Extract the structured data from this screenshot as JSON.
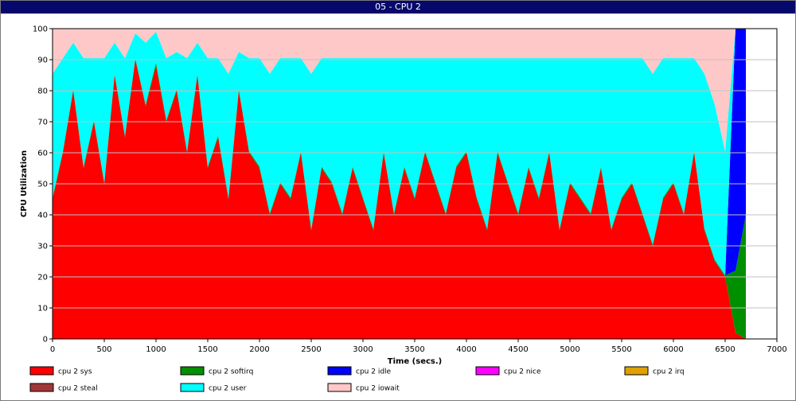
{
  "window": {
    "title": "05 - CPU 2"
  },
  "chart_data": {
    "type": "area",
    "title": "05 - CPU 2",
    "xlabel": "Time (secs.)",
    "ylabel": "CPU Utilization",
    "xlim": [
      0,
      7000
    ],
    "ylim": [
      0,
      100
    ],
    "xticks": [
      0,
      500,
      1000,
      1500,
      2000,
      2500,
      3000,
      3500,
      4000,
      4500,
      5000,
      5500,
      6000,
      6500,
      7000
    ],
    "yticks": [
      0,
      10,
      20,
      30,
      40,
      50,
      60,
      70,
      80,
      90,
      100
    ],
    "grid": "horizontal",
    "legend_position": "bottom",
    "stacking": "stacked",
    "x": [
      0,
      100,
      200,
      300,
      400,
      500,
      600,
      700,
      800,
      900,
      1000,
      1100,
      1200,
      1300,
      1400,
      1500,
      1600,
      1700,
      1800,
      1900,
      2000,
      2100,
      2200,
      2300,
      2400,
      2500,
      2600,
      2700,
      2800,
      2900,
      3000,
      3100,
      3200,
      3300,
      3400,
      3500,
      3600,
      3700,
      3800,
      3900,
      4000,
      4100,
      4200,
      4300,
      4400,
      4500,
      4600,
      4700,
      4800,
      4900,
      5000,
      5100,
      5200,
      5300,
      5400,
      5500,
      5600,
      5700,
      5800,
      5900,
      6000,
      6100,
      6200,
      6300,
      6400,
      6500,
      6600,
      6700
    ],
    "series": [
      {
        "name": "cpu 2 sys",
        "color": "#ff0000",
        "values": [
          45,
          60,
          80,
          55,
          70,
          50,
          85,
          65,
          90,
          75,
          88,
          70,
          80,
          60,
          85,
          55,
          65,
          45,
          80,
          60,
          55,
          40,
          50,
          45,
          60,
          35,
          55,
          50,
          40,
          55,
          45,
          35,
          60,
          40,
          55,
          45,
          60,
          50,
          40,
          55,
          60,
          45,
          35,
          60,
          50,
          40,
          55,
          45,
          60,
          35,
          50,
          45,
          40,
          55,
          35,
          45,
          50,
          40,
          30,
          45,
          50,
          40,
          60,
          35,
          25,
          20,
          2,
          0
        ]
      },
      {
        "name": "cpu 2 softirq",
        "color": "#008f00",
        "values": [
          0.5,
          0.5,
          0.5,
          0.5,
          0.5,
          0.5,
          0.5,
          0.5,
          0.5,
          0.5,
          1,
          0.5,
          0.5,
          0.5,
          0.5,
          0.5,
          0.5,
          0.5,
          0.5,
          0.5,
          0.5,
          0.5,
          0.5,
          0.5,
          0.5,
          0.5,
          0.5,
          0.5,
          0.5,
          0.5,
          0.5,
          0.5,
          0.5,
          0.5,
          0.5,
          0.5,
          0.5,
          0.5,
          0.5,
          0.5,
          0.5,
          0.5,
          0.5,
          0.5,
          0.5,
          0.5,
          0.5,
          0.5,
          0.5,
          0.5,
          0.5,
          0.5,
          0.5,
          0.5,
          0.5,
          0.5,
          0.5,
          0.5,
          0.5,
          0.5,
          0.5,
          0.5,
          0.5,
          0.5,
          0.5,
          0.5,
          20,
          40
        ]
      },
      {
        "name": "cpu 2 idle",
        "color": "#0000ff",
        "values": [
          0,
          0,
          0,
          0,
          0,
          0,
          0,
          0,
          0,
          0,
          0,
          0,
          0,
          0,
          0,
          0,
          0,
          0,
          0,
          0,
          0,
          0,
          0,
          0,
          0,
          0,
          0,
          0,
          0,
          0,
          0,
          0,
          0,
          0,
          0,
          0,
          0,
          0,
          0,
          0,
          0,
          0,
          0,
          0,
          0,
          0,
          0,
          0,
          0,
          0,
          0,
          0,
          0,
          0,
          0,
          0,
          0,
          0,
          0,
          0,
          0,
          0,
          0,
          0,
          0,
          0,
          78,
          60
        ]
      },
      {
        "name": "cpu 2 nice",
        "color": "#ff00ff",
        "values": [
          0,
          0,
          0,
          0,
          0,
          0,
          0,
          0,
          0,
          0,
          0,
          0,
          0,
          0,
          0,
          0,
          0,
          0,
          0,
          0,
          0,
          0,
          0,
          0,
          0,
          0,
          0,
          0,
          0,
          0,
          0,
          0,
          0,
          0,
          0,
          0,
          0,
          0,
          0,
          0,
          0,
          0,
          0,
          0,
          0,
          0,
          0,
          0,
          0,
          0,
          0,
          0,
          0,
          0,
          0,
          0,
          0,
          0,
          0,
          0,
          0,
          0,
          0,
          0,
          0,
          0,
          0,
          0
        ]
      },
      {
        "name": "cpu 2 irq",
        "color": "#e0a000",
        "values": [
          0,
          0,
          0,
          0,
          0,
          0,
          0,
          0,
          0,
          0,
          0,
          0,
          0,
          0,
          0,
          0,
          0,
          0,
          0,
          0,
          0,
          0,
          0,
          0,
          0,
          0,
          0,
          0,
          0,
          0,
          0,
          0,
          0,
          0,
          0,
          0,
          0,
          0,
          0,
          0,
          0,
          0,
          0,
          0,
          0,
          0,
          0,
          0,
          0,
          0,
          0,
          0,
          0,
          0,
          0,
          0,
          0,
          0,
          0,
          0,
          0,
          0,
          0,
          0,
          0,
          0,
          0,
          0
        ]
      },
      {
        "name": "cpu 2 steal",
        "color": "#a03838",
        "values": [
          0,
          0,
          0,
          0,
          0,
          0,
          0,
          0,
          0,
          0,
          0,
          0,
          0,
          0,
          0,
          0,
          0,
          0,
          0,
          0,
          0,
          0,
          0,
          0,
          0,
          0,
          0,
          0,
          0,
          0,
          0,
          0,
          0,
          0,
          0,
          0,
          0,
          0,
          0,
          0,
          0,
          0,
          0,
          0,
          0,
          0,
          0,
          0,
          0,
          0,
          0,
          0,
          0,
          0,
          0,
          0,
          0,
          0,
          0,
          0,
          0,
          0,
          0,
          0,
          0,
          0,
          0,
          0
        ]
      },
      {
        "name": "cpu 2 user",
        "color": "#00ffff",
        "values": [
          40,
          30,
          15,
          35,
          20,
          40,
          10,
          25,
          8,
          20,
          10,
          20,
          12,
          30,
          10,
          35,
          25,
          40,
          12,
          30,
          35,
          45,
          40,
          45,
          30,
          50,
          35,
          40,
          50,
          35,
          45,
          55,
          30,
          50,
          35,
          45,
          30,
          40,
          50,
          35,
          30,
          45,
          55,
          30,
          40,
          50,
          35,
          45,
          30,
          55,
          40,
          45,
          50,
          35,
          55,
          45,
          40,
          50,
          55,
          45,
          40,
          50,
          30,
          50,
          50,
          40,
          0,
          0
        ]
      },
      {
        "name": "cpu 2 iowait",
        "color": "#ffc8c8",
        "values": [
          14.5,
          9.5,
          4.5,
          9.5,
          9.5,
          9.5,
          4.5,
          9.5,
          1.5,
          4.5,
          1,
          9.5,
          7.5,
          9.5,
          4.5,
          9.5,
          9.5,
          14.5,
          7.5,
          9.5,
          9.5,
          14.5,
          9.5,
          9.5,
          9.5,
          14.5,
          9.5,
          9.5,
          9.5,
          9.5,
          9.5,
          9.5,
          9.5,
          9.5,
          9.5,
          9.5,
          9.5,
          9.5,
          9.5,
          9.5,
          9.5,
          9.5,
          9.5,
          9.5,
          9.5,
          9.5,
          9.5,
          9.5,
          9.5,
          9.5,
          9.5,
          9.5,
          9.5,
          9.5,
          9.5,
          9.5,
          9.5,
          9.5,
          14.5,
          9.5,
          9.5,
          9.5,
          9.5,
          14.5,
          24.5,
          39.5,
          0,
          0
        ]
      }
    ],
    "legend": [
      {
        "label": "cpu 2 sys",
        "color": "#ff0000"
      },
      {
        "label": "cpu 2 softirq",
        "color": "#008f00"
      },
      {
        "label": "cpu 2 idle",
        "color": "#0000ff"
      },
      {
        "label": "cpu 2 nice",
        "color": "#ff00ff"
      },
      {
        "label": "cpu 2 irq",
        "color": "#e0a000"
      },
      {
        "label": "cpu 2 steal",
        "color": "#a03838"
      },
      {
        "label": "cpu 2 user",
        "color": "#00ffff"
      },
      {
        "label": "cpu 2 iowait",
        "color": "#ffc8c8"
      }
    ]
  }
}
